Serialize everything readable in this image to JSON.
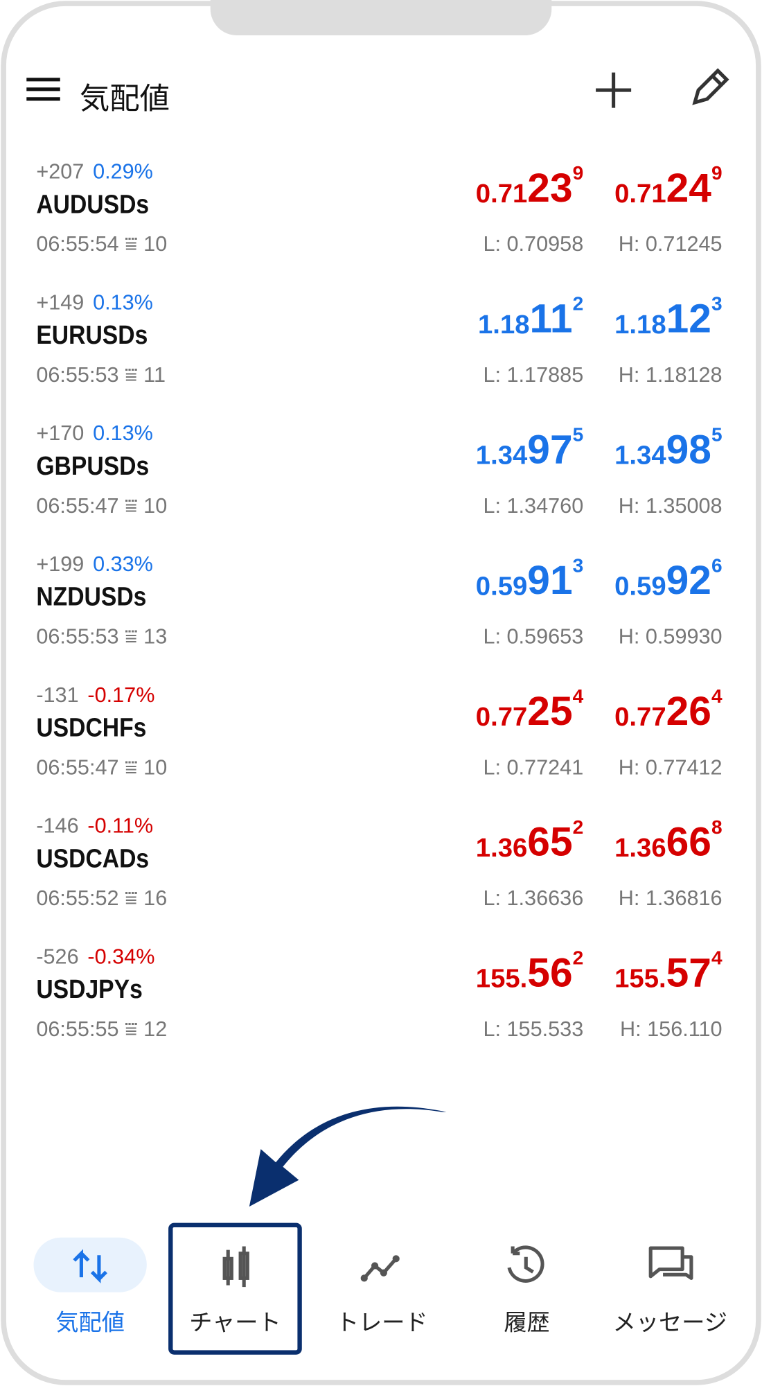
{
  "header": {
    "title": "気配値"
  },
  "symbols": [
    {
      "change": "+207",
      "percent": "0.29%",
      "percent_color": "#1a73e8",
      "name": "AUDUSDs",
      "time": "06:55:54",
      "spread": "10",
      "price_color": "#d50000",
      "bid": [
        "0.71",
        "23",
        "9"
      ],
      "ask": [
        "0.71",
        "24",
        "9"
      ],
      "low": "L: 0.70958",
      "high": "H: 0.71245"
    },
    {
      "change": "+149",
      "percent": "0.13%",
      "percent_color": "#1a73e8",
      "name": "EURUSDs",
      "time": "06:55:53",
      "spread": "11",
      "price_color": "#1a73e8",
      "bid": [
        "1.18",
        "11",
        "2"
      ],
      "ask": [
        "1.18",
        "12",
        "3"
      ],
      "low": "L: 1.17885",
      "high": "H: 1.18128"
    },
    {
      "change": "+170",
      "percent": "0.13%",
      "percent_color": "#1a73e8",
      "name": "GBPUSDs",
      "time": "06:55:47",
      "spread": "10",
      "price_color": "#1a73e8",
      "bid": [
        "1.34",
        "97",
        "5"
      ],
      "ask": [
        "1.34",
        "98",
        "5"
      ],
      "low": "L: 1.34760",
      "high": "H: 1.35008"
    },
    {
      "change": "+199",
      "percent": "0.33%",
      "percent_color": "#1a73e8",
      "name": "NZDUSDs",
      "time": "06:55:53",
      "spread": "13",
      "price_color": "#1a73e8",
      "bid": [
        "0.59",
        "91",
        "3"
      ],
      "ask": [
        "0.59",
        "92",
        "6"
      ],
      "low": "L: 0.59653",
      "high": "H: 0.59930"
    },
    {
      "change": "-131",
      "percent": "-0.17%",
      "percent_color": "#d50000",
      "name": "USDCHFs",
      "time": "06:55:47",
      "spread": "10",
      "price_color": "#d50000",
      "bid": [
        "0.77",
        "25",
        "4"
      ],
      "ask": [
        "0.77",
        "26",
        "4"
      ],
      "low": "L: 0.77241",
      "high": "H: 0.77412"
    },
    {
      "change": "-146",
      "percent": "-0.11%",
      "percent_color": "#d50000",
      "name": "USDCADs",
      "time": "06:55:52",
      "spread": "16",
      "price_color": "#d50000",
      "bid": [
        "1.36",
        "65",
        "2"
      ],
      "ask": [
        "1.36",
        "66",
        "8"
      ],
      "low": "L: 1.36636",
      "high": "H: 1.36816"
    },
    {
      "change": "-526",
      "percent": "-0.34%",
      "percent_color": "#d50000",
      "name": "USDJPYs",
      "time": "06:55:55",
      "spread": "12",
      "price_color": "#d50000",
      "bid": [
        "155.",
        "56",
        "2"
      ],
      "ask": [
        "155.",
        "57",
        "4"
      ],
      "low": "L: 155.533",
      "high": "H: 156.110"
    }
  ],
  "nav": [
    {
      "label": "気配値"
    },
    {
      "label": "チャート"
    },
    {
      "label": "トレード"
    },
    {
      "label": "履歴"
    },
    {
      "label": "メッセージ"
    }
  ]
}
